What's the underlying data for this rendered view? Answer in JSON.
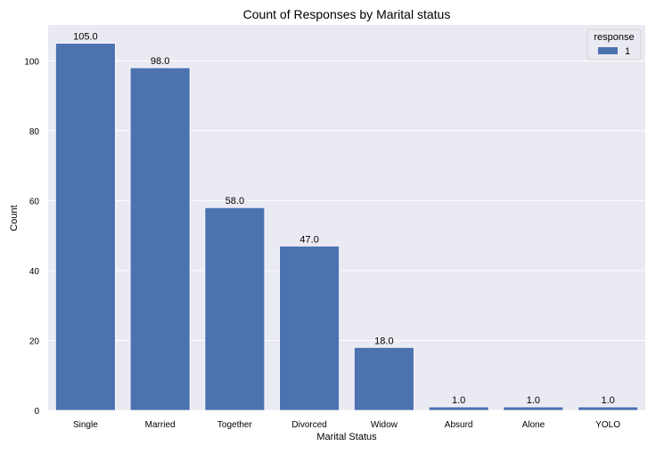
{
  "chart_data": {
    "type": "bar",
    "title": "Count of Responses by Marital status",
    "xlabel": "Marital Status",
    "ylabel": "Count",
    "categories": [
      "Single",
      "Married",
      "Together",
      "Divorced",
      "Widow",
      "Absurd",
      "Alone",
      "YOLO"
    ],
    "series": [
      {
        "name": "1",
        "values": [
          105.0,
          98.0,
          58.0,
          47.0,
          18.0,
          1.0,
          1.0,
          1.0
        ],
        "labels": [
          "105.0",
          "98.0",
          "58.0",
          "47.0",
          "18.0",
          "1.0",
          "1.0",
          "1.0"
        ],
        "color": "#4c72b0"
      }
    ],
    "ylim": [
      0,
      110.25
    ],
    "yticks": [
      0,
      20,
      40,
      60,
      80,
      100
    ],
    "grid": true,
    "legend": {
      "title": "response",
      "placement": "top-right"
    },
    "background_color": "#eaeaf2",
    "grid_color": "#ffffff"
  }
}
